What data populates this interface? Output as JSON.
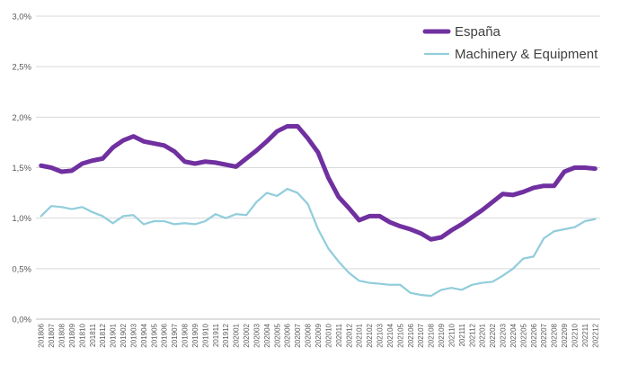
{
  "chart_data": {
    "type": "line",
    "title": "",
    "xlabel": "",
    "ylabel": "",
    "ylim": [
      0,
      3.0
    ],
    "y_ticks": [
      "0,0%",
      "0,5%",
      "1,0%",
      "1,5%",
      "2,0%",
      "2,5%",
      "3,0%"
    ],
    "grid": true,
    "legend_position": "top-right",
    "x": [
      "201806",
      "201807",
      "201808",
      "201809",
      "201810",
      "201811",
      "201812",
      "201901",
      "201902",
      "201903",
      "201904",
      "201905",
      "201906",
      "201907",
      "201908",
      "201909",
      "201910",
      "201911",
      "201912",
      "202001",
      "202002",
      "202003",
      "202004",
      "202005",
      "202006",
      "202007",
      "202008",
      "202009",
      "202010",
      "202011",
      "202012",
      "202101",
      "202102",
      "202103",
      "202104",
      "202105",
      "202106",
      "202107",
      "202108",
      "202109",
      "202110",
      "202111",
      "202112",
      "202201",
      "202202",
      "202203",
      "202204",
      "202205",
      "202206",
      "202207",
      "202208",
      "202209",
      "202210",
      "202211",
      "202212"
    ],
    "series": [
      {
        "name": "España",
        "color": "#7030a0",
        "values": [
          1.52,
          1.5,
          1.46,
          1.47,
          1.54,
          1.57,
          1.59,
          1.7,
          1.77,
          1.81,
          1.76,
          1.74,
          1.72,
          1.66,
          1.56,
          1.54,
          1.56,
          1.55,
          1.53,
          1.51,
          1.59,
          1.67,
          1.76,
          1.86,
          1.91,
          1.91,
          1.79,
          1.65,
          1.4,
          1.21,
          1.1,
          0.98,
          1.02,
          1.02,
          0.96,
          0.92,
          0.89,
          0.85,
          0.79,
          0.81,
          0.88,
          0.94,
          1.01,
          1.08,
          1.16,
          1.24,
          1.23,
          1.26,
          1.3,
          1.32,
          1.32,
          1.46,
          1.5,
          1.5,
          1.49
        ]
      },
      {
        "name": "Machinery & Equipment",
        "color": "#92cddc",
        "values": [
          1.02,
          1.12,
          1.11,
          1.09,
          1.11,
          1.06,
          1.02,
          0.95,
          1.02,
          1.03,
          0.94,
          0.97,
          0.97,
          0.94,
          0.95,
          0.94,
          0.97,
          1.04,
          1.0,
          1.04,
          1.03,
          1.16,
          1.25,
          1.22,
          1.29,
          1.25,
          1.14,
          0.89,
          0.7,
          0.57,
          0.46,
          0.38,
          0.36,
          0.35,
          0.34,
          0.34,
          0.26,
          0.24,
          0.23,
          0.29,
          0.31,
          0.29,
          0.34,
          0.36,
          0.37,
          0.43,
          0.5,
          0.6,
          0.62,
          0.8,
          0.87,
          0.89,
          0.91,
          0.97,
          0.99
        ]
      }
    ]
  }
}
